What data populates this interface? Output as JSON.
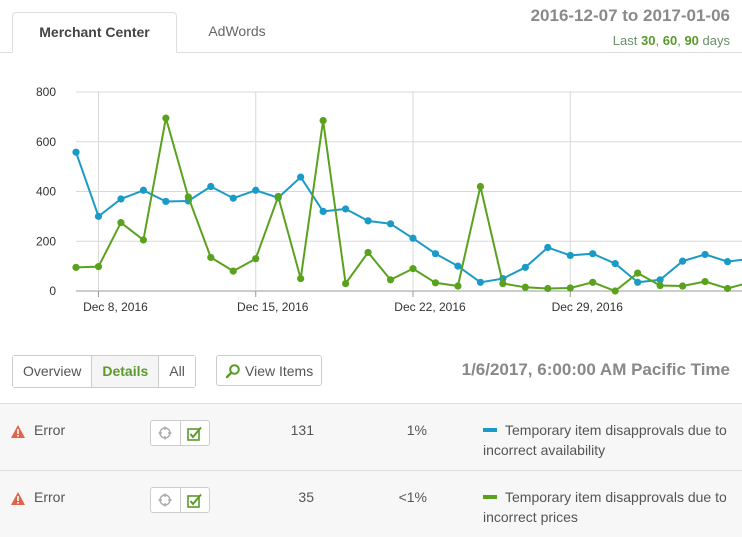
{
  "tabs": {
    "merchant_center": "Merchant Center",
    "adwords": "AdWords"
  },
  "date_range": "2016-12-07 to 2017-01-06",
  "last_days": {
    "prefix": "Last",
    "opt1": "30",
    "sep1": ",",
    "opt2": "60",
    "sep2": ",",
    "opt3": "90",
    "suffix": "days"
  },
  "colors": {
    "series_blue": "#1a9bc7",
    "series_green": "#5aa21e",
    "accent_green": "#5a9a2a",
    "error_icon": "#e0634a"
  },
  "toolbar": {
    "overview": "Overview",
    "details": "Details",
    "all": "All",
    "view_items": "View Items",
    "timestamp": "1/6/2017, 6:00:00 AM Pacific Time"
  },
  "rows": [
    {
      "severity": "Error",
      "count": "131",
      "percent": "1%",
      "description": "Temporary item disapprovals due to incorrect availability",
      "color": "#1a9bc7"
    },
    {
      "severity": "Error",
      "count": "35",
      "percent": "<1%",
      "description": "Temporary item disapprovals due to incorrect prices",
      "color": "#5aa21e"
    }
  ],
  "chart_data": {
    "type": "line",
    "x_start": "2016-12-07",
    "x": [
      "2016-12-07",
      "2016-12-08",
      "2016-12-09",
      "2016-12-10",
      "2016-12-11",
      "2016-12-12",
      "2016-12-13",
      "2016-12-14",
      "2016-12-15",
      "2016-12-16",
      "2016-12-17",
      "2016-12-18",
      "2016-12-19",
      "2016-12-20",
      "2016-12-21",
      "2016-12-22",
      "2016-12-23",
      "2016-12-24",
      "2016-12-25",
      "2016-12-26",
      "2016-12-27",
      "2016-12-28",
      "2016-12-29",
      "2016-12-30",
      "2016-12-31",
      "2017-01-01",
      "2017-01-02",
      "2017-01-03",
      "2017-01-04",
      "2017-01-05",
      "2017-01-06"
    ],
    "x_ticks": [
      "Dec 8, 2016",
      "Dec 15, 2016",
      "Dec 22, 2016",
      "Dec 29, 2016"
    ],
    "ylim": [
      0,
      800
    ],
    "y_ticks": [
      "0",
      "200",
      "400",
      "600",
      "800"
    ],
    "grid": true,
    "series": [
      {
        "color": "#1a9bc7",
        "values": [
          558,
          300,
          370,
          405,
          360,
          362,
          420,
          373,
          405,
          375,
          458,
          320,
          330,
          282,
          270,
          212,
          150,
          100,
          35,
          50,
          95,
          175,
          143,
          150,
          110,
          35,
          45,
          120,
          147,
          118,
          130
        ]
      },
      {
        "color": "#5aa21e",
        "values": [
          95,
          98,
          275,
          205,
          695,
          378,
          135,
          80,
          130,
          380,
          50,
          685,
          30,
          155,
          45,
          90,
          33,
          20,
          420,
          30,
          15,
          10,
          12,
          35,
          0,
          72,
          22,
          20,
          38,
          10,
          35
        ]
      }
    ]
  }
}
